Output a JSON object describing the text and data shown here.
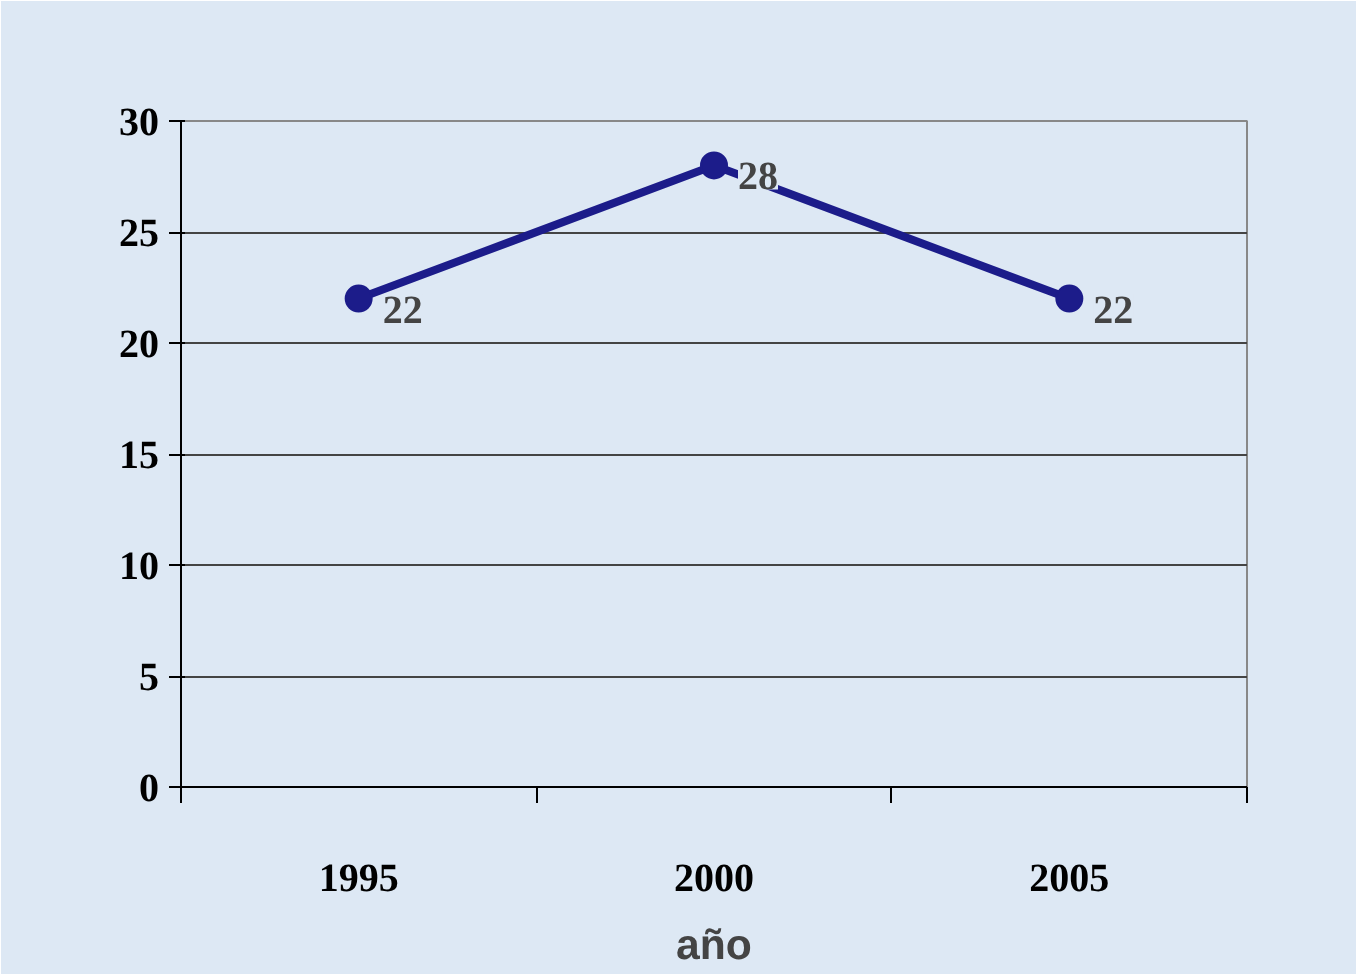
{
  "chart_data": {
    "type": "line",
    "xlabel": "año",
    "categories": [
      "1995",
      "2000",
      "2005"
    ],
    "series": [
      {
        "color": "#1c1c8a",
        "values": [
          22,
          28,
          22
        ]
      }
    ],
    "ylim": [
      0,
      30
    ],
    "yticks": [
      0,
      5,
      10,
      15,
      20,
      25,
      30
    ],
    "grid": "y",
    "marker": "circle",
    "line_style": "solid",
    "data_labels": true
  }
}
